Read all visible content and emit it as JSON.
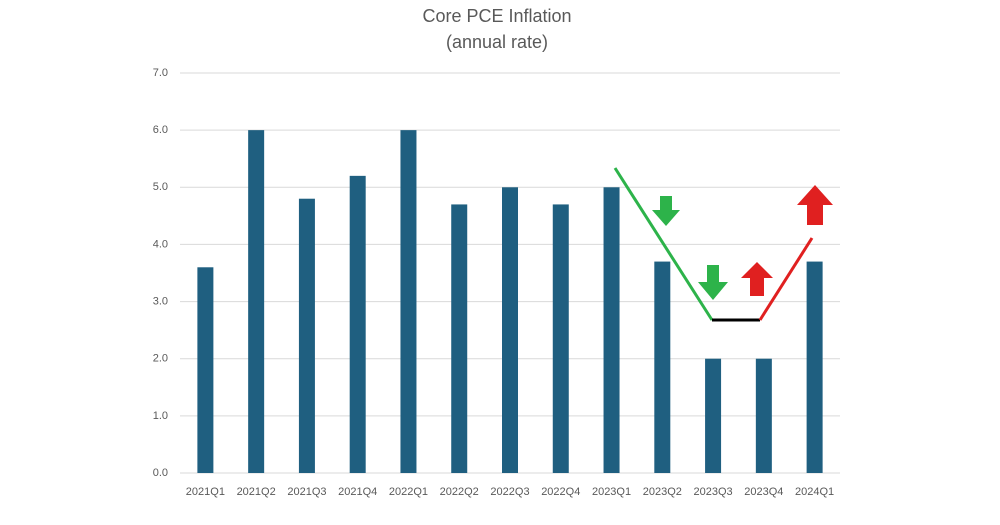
{
  "chart_data": {
    "type": "bar",
    "title": "Core PCE Inflation",
    "subtitle": "(annual rate)",
    "categories": [
      "2021Q1",
      "2021Q2",
      "2021Q3",
      "2021Q4",
      "2022Q1",
      "2022Q2",
      "2022Q3",
      "2022Q4",
      "2023Q1",
      "2023Q2",
      "2023Q3",
      "2023Q4",
      "2024Q1"
    ],
    "values": [
      3.6,
      6.0,
      4.8,
      5.2,
      6.0,
      4.7,
      5.0,
      4.7,
      5.0,
      3.7,
      2.0,
      2.0,
      3.7
    ],
    "color": "#1f5f80",
    "ylim": [
      0,
      7
    ],
    "yticks": [
      {
        "value": 0,
        "label": "0.0"
      },
      {
        "value": 1,
        "label": "1.0"
      },
      {
        "value": 2,
        "label": "2.0"
      },
      {
        "value": 3,
        "label": "3.0"
      },
      {
        "value": 4,
        "label": "4.0"
      },
      {
        "value": 5,
        "label": "5.0"
      },
      {
        "value": 6,
        "label": "6.0"
      },
      {
        "value": 7,
        "label": "7.0"
      }
    ],
    "grid": true
  }
}
